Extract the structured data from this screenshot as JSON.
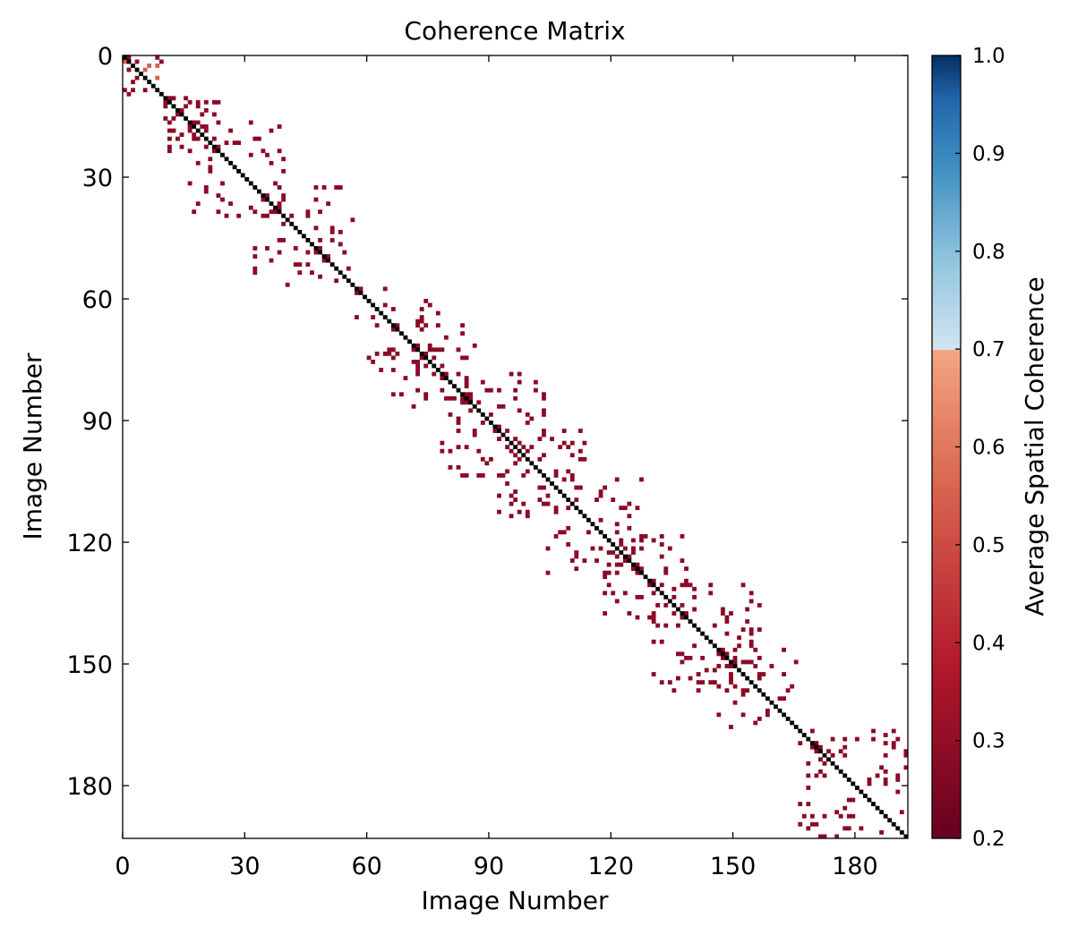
{
  "chart_data": {
    "type": "heatmap",
    "title": "Coherence Matrix",
    "xlabel": "Image Number",
    "ylabel": "Image Number",
    "matrix_size": 193,
    "x_ticks": [
      0,
      30,
      60,
      90,
      120,
      150,
      180
    ],
    "y_ticks": [
      0,
      30,
      60,
      90,
      120,
      150,
      180
    ],
    "xlim": [
      0,
      193
    ],
    "ylim": [
      193,
      0
    ],
    "colorbar": {
      "label": "Average Spatial Coherence",
      "ticks": [
        "0.2",
        "0.3",
        "0.4",
        "0.5",
        "0.6",
        "0.7",
        "0.8",
        "0.9",
        "1.0"
      ],
      "range": [
        0.2,
        1.0
      ],
      "threshold": 0.7,
      "colors_below": [
        "#67001f",
        "#b2182b",
        "#d6604d",
        "#f4a582"
      ],
      "colors_above": [
        "#d1e5f0",
        "#92c5de",
        "#4393c3",
        "#2166ac",
        "#053061"
      ]
    },
    "diagonal_value": 1.0,
    "diagonal_color": "#000000",
    "low_cell_color": "#8b0a26",
    "blocks": [
      [
        0,
        10
      ],
      [
        10,
        24
      ],
      [
        16,
        40
      ],
      [
        32,
        57
      ],
      [
        57,
        78
      ],
      [
        65,
        88
      ],
      [
        78,
        104
      ],
      [
        92,
        114
      ],
      [
        104,
        128
      ],
      [
        118,
        139
      ],
      [
        129,
        157
      ],
      [
        146,
        166
      ],
      [
        166,
        193
      ]
    ]
  }
}
